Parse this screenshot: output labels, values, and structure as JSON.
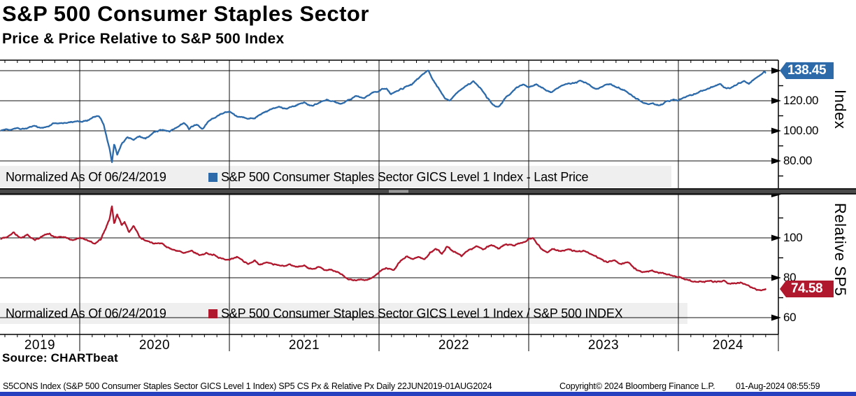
{
  "header": {
    "title": "S&P 500 Consumer Staples Sector",
    "subtitle": "Price & Price Relative to S&P 500 Index"
  },
  "source_line": "Source: CHARTbeat",
  "footer": {
    "left": "S5CONS Index (S&P 500 Consumer Staples Sector GICS Level 1 Index) SP5 CS Px & Relative Px  Daily 22JUN2019-01AUG2024",
    "copyright": "Copyright© 2024 Bloomberg Finance L.P.",
    "timestamp": "01-Aug-2024 08:55:59"
  },
  "x_axis": {
    "start": 2019.47,
    "end": 2024.585,
    "year_labels": [
      "2019",
      "2020",
      "2021",
      "2022",
      "2023",
      "2024"
    ],
    "year_gridlines": [
      2020,
      2021,
      2022,
      2023,
      2024
    ]
  },
  "chart_data": [
    {
      "type": "line",
      "panel": "price",
      "title": "S&P 500 Consumer Staples Sector GICS Level 1 Index",
      "legend_prefix": "Normalized As Of 06/24/2019",
      "legend_label": "S&P 500 Consumer Staples Sector GICS Level 1 Index - Last Price",
      "axis_label": "Index",
      "line_color": "#2d6aaa",
      "last_price": "138.45",
      "ylim": [
        68,
        147
      ],
      "yticks": [
        {
          "value": 120,
          "label": "120.00"
        },
        {
          "value": 100,
          "label": "100.00"
        },
        {
          "value": 80,
          "label": "80.00"
        }
      ],
      "minor_ticks": [
        130,
        110,
        90,
        70
      ],
      "gridline_values": [
        140,
        120,
        100,
        80
      ],
      "keyframes": [
        [
          2019.47,
          100
        ],
        [
          2019.52,
          100.5
        ],
        [
          2019.58,
          102
        ],
        [
          2019.63,
          101
        ],
        [
          2019.7,
          103
        ],
        [
          2019.75,
          102
        ],
        [
          2019.82,
          104.5
        ],
        [
          2019.9,
          105
        ],
        [
          2019.97,
          106.5
        ],
        [
          2020.05,
          107
        ],
        [
          2020.1,
          109.5
        ],
        [
          2020.13,
          110
        ],
        [
          2020.16,
          104
        ],
        [
          2020.18,
          96
        ],
        [
          2020.2,
          88
        ],
        [
          2020.215,
          79
        ],
        [
          2020.23,
          91
        ],
        [
          2020.25,
          84
        ],
        [
          2020.28,
          92
        ],
        [
          2020.32,
          96
        ],
        [
          2020.36,
          94
        ],
        [
          2020.4,
          97
        ],
        [
          2020.44,
          95
        ],
        [
          2020.5,
          99
        ],
        [
          2020.55,
          101
        ],
        [
          2020.6,
          99
        ],
        [
          2020.65,
          103
        ],
        [
          2020.7,
          105
        ],
        [
          2020.73,
          101
        ],
        [
          2020.78,
          104
        ],
        [
          2020.82,
          101
        ],
        [
          2020.87,
          107
        ],
        [
          2020.92,
          110
        ],
        [
          2020.97,
          112
        ],
        [
          2021.0,
          113
        ],
        [
          2021.05,
          110
        ],
        [
          2021.1,
          108.5
        ],
        [
          2021.17,
          109
        ],
        [
          2021.22,
          112
        ],
        [
          2021.28,
          114
        ],
        [
          2021.33,
          116
        ],
        [
          2021.38,
          114.5
        ],
        [
          2021.45,
          117
        ],
        [
          2021.5,
          118.5
        ],
        [
          2021.55,
          117
        ],
        [
          2021.6,
          119
        ],
        [
          2021.65,
          121
        ],
        [
          2021.7,
          119
        ],
        [
          2021.75,
          117.5
        ],
        [
          2021.8,
          121
        ],
        [
          2021.85,
          123
        ],
        [
          2021.9,
          122
        ],
        [
          2021.95,
          125
        ],
        [
          2022.0,
          127
        ],
        [
          2022.05,
          128
        ],
        [
          2022.08,
          125
        ],
        [
          2022.12,
          126
        ],
        [
          2022.17,
          129
        ],
        [
          2022.22,
          131
        ],
        [
          2022.26,
          134
        ],
        [
          2022.3,
          138.5
        ],
        [
          2022.33,
          140
        ],
        [
          2022.36,
          134
        ],
        [
          2022.4,
          128
        ],
        [
          2022.44,
          122
        ],
        [
          2022.47,
          119.5
        ],
        [
          2022.52,
          125
        ],
        [
          2022.56,
          128
        ],
        [
          2022.6,
          131
        ],
        [
          2022.63,
          133
        ],
        [
          2022.68,
          128
        ],
        [
          2022.72,
          122
        ],
        [
          2022.76,
          117
        ],
        [
          2022.8,
          115.5
        ],
        [
          2022.84,
          121
        ],
        [
          2022.88,
          125
        ],
        [
          2022.92,
          129
        ],
        [
          2022.96,
          131
        ],
        [
          2023.0,
          129
        ],
        [
          2023.05,
          131
        ],
        [
          2023.1,
          128
        ],
        [
          2023.15,
          126
        ],
        [
          2023.2,
          129
        ],
        [
          2023.25,
          131
        ],
        [
          2023.3,
          132
        ],
        [
          2023.35,
          133
        ],
        [
          2023.4,
          131
        ],
        [
          2023.45,
          128
        ],
        [
          2023.5,
          130
        ],
        [
          2023.55,
          131
        ],
        [
          2023.6,
          129
        ],
        [
          2023.65,
          126
        ],
        [
          2023.7,
          123
        ],
        [
          2023.75,
          120
        ],
        [
          2023.8,
          117.5
        ],
        [
          2023.83,
          118.5
        ],
        [
          2023.87,
          117
        ],
        [
          2023.92,
          119
        ],
        [
          2023.97,
          121
        ],
        [
          2024.0,
          120.5
        ],
        [
          2024.05,
          123
        ],
        [
          2024.1,
          124.5
        ],
        [
          2024.15,
          126
        ],
        [
          2024.2,
          128.5
        ],
        [
          2024.25,
          130
        ],
        [
          2024.28,
          131
        ],
        [
          2024.32,
          127.5
        ],
        [
          2024.36,
          129
        ],
        [
          2024.4,
          131.5
        ],
        [
          2024.44,
          133
        ],
        [
          2024.47,
          131
        ],
        [
          2024.5,
          133.5
        ],
        [
          2024.53,
          135.5
        ],
        [
          2024.56,
          138
        ],
        [
          2024.575,
          139.5
        ],
        [
          2024.585,
          138.45
        ]
      ]
    },
    {
      "type": "line",
      "panel": "relative",
      "title": "S&P 500 Consumer Staples Sector GICS Level 1 Index / S&P 500 INDEX",
      "legend_prefix": "Normalized As Of 06/24/2019",
      "legend_label": "S&P 500 Consumer Staples Sector GICS Level 1 Index / S&P 500 INDEX",
      "axis_label": "Relative SP5",
      "line_color": "#b0182e",
      "last_price": "74.58",
      "ylim": [
        50,
        122
      ],
      "yticks": [
        {
          "value": 100,
          "label": "100"
        },
        {
          "value": 80,
          "label": "80"
        },
        {
          "value": 60,
          "label": "60"
        }
      ],
      "minor_ticks": [
        110,
        90,
        70
      ],
      "gridline_values": [
        100,
        80,
        60
      ],
      "keyframes": [
        [
          2019.47,
          100
        ],
        [
          2019.52,
          101
        ],
        [
          2019.56,
          102.5
        ],
        [
          2019.6,
          100
        ],
        [
          2019.65,
          101.5
        ],
        [
          2019.7,
          99
        ],
        [
          2019.75,
          101
        ],
        [
          2019.8,
          102
        ],
        [
          2019.85,
          100
        ],
        [
          2019.9,
          100.5
        ],
        [
          2019.95,
          99
        ],
        [
          2020.0,
          100
        ],
        [
          2020.05,
          98.5
        ],
        [
          2020.1,
          97.5
        ],
        [
          2020.14,
          99
        ],
        [
          2020.17,
          104
        ],
        [
          2020.2,
          110
        ],
        [
          2020.215,
          116.5
        ],
        [
          2020.23,
          107
        ],
        [
          2020.25,
          112
        ],
        [
          2020.28,
          106
        ],
        [
          2020.3,
          108
        ],
        [
          2020.33,
          103
        ],
        [
          2020.36,
          105.5
        ],
        [
          2020.4,
          101
        ],
        [
          2020.45,
          98
        ],
        [
          2020.5,
          97
        ],
        [
          2020.55,
          97.5
        ],
        [
          2020.6,
          95
        ],
        [
          2020.65,
          94
        ],
        [
          2020.7,
          92.5
        ],
        [
          2020.75,
          94
        ],
        [
          2020.8,
          91.5
        ],
        [
          2020.85,
          92.5
        ],
        [
          2020.9,
          91
        ],
        [
          2020.95,
          89.5
        ],
        [
          2021.0,
          89
        ],
        [
          2021.05,
          91
        ],
        [
          2021.08,
          89
        ],
        [
          2021.12,
          87
        ],
        [
          2021.17,
          88.5
        ],
        [
          2021.2,
          86.5
        ],
        [
          2021.25,
          88
        ],
        [
          2021.3,
          87
        ],
        [
          2021.35,
          86
        ],
        [
          2021.4,
          86.5
        ],
        [
          2021.45,
          85.5
        ],
        [
          2021.5,
          86
        ],
        [
          2021.55,
          84.5
        ],
        [
          2021.6,
          85.5
        ],
        [
          2021.65,
          84
        ],
        [
          2021.7,
          83.5
        ],
        [
          2021.75,
          82
        ],
        [
          2021.78,
          79.5
        ],
        [
          2021.82,
          78.5
        ],
        [
          2021.86,
          79.5
        ],
        [
          2021.9,
          78.5
        ],
        [
          2021.95,
          80
        ],
        [
          2022.0,
          83
        ],
        [
          2022.05,
          85
        ],
        [
          2022.1,
          84
        ],
        [
          2022.14,
          88
        ],
        [
          2022.18,
          91
        ],
        [
          2022.22,
          89
        ],
        [
          2022.26,
          90.5
        ],
        [
          2022.3,
          89
        ],
        [
          2022.34,
          92
        ],
        [
          2022.38,
          94.5
        ],
        [
          2022.42,
          92
        ],
        [
          2022.45,
          95.5
        ],
        [
          2022.5,
          93
        ],
        [
          2022.55,
          91
        ],
        [
          2022.6,
          94
        ],
        [
          2022.65,
          96
        ],
        [
          2022.7,
          94.5
        ],
        [
          2022.75,
          96.5
        ],
        [
          2022.8,
          95
        ],
        [
          2022.85,
          97
        ],
        [
          2022.9,
          96
        ],
        [
          2022.95,
          97.5
        ],
        [
          2023.0,
          99.5
        ],
        [
          2023.03,
          100
        ],
        [
          2023.08,
          95
        ],
        [
          2023.12,
          93
        ],
        [
          2023.17,
          94.5
        ],
        [
          2023.22,
          93.5
        ],
        [
          2023.27,
          94
        ],
        [
          2023.32,
          93
        ],
        [
          2023.37,
          93.5
        ],
        [
          2023.42,
          92
        ],
        [
          2023.47,
          90
        ],
        [
          2023.52,
          88
        ],
        [
          2023.57,
          88.5
        ],
        [
          2023.62,
          87
        ],
        [
          2023.67,
          88
        ],
        [
          2023.72,
          84
        ],
        [
          2023.77,
          83
        ],
        [
          2023.82,
          83.5
        ],
        [
          2023.87,
          82.5
        ],
        [
          2023.92,
          82
        ],
        [
          2023.97,
          81
        ],
        [
          2024.0,
          80
        ],
        [
          2024.05,
          79
        ],
        [
          2024.1,
          78.5
        ],
        [
          2024.15,
          78
        ],
        [
          2024.2,
          78.5
        ],
        [
          2024.25,
          77.5
        ],
        [
          2024.3,
          78.5
        ],
        [
          2024.34,
          77
        ],
        [
          2024.38,
          76.5
        ],
        [
          2024.42,
          77.5
        ],
        [
          2024.46,
          76
        ],
        [
          2024.5,
          75
        ],
        [
          2024.53,
          74
        ],
        [
          2024.56,
          73.5
        ],
        [
          2024.57,
          73.8
        ],
        [
          2024.585,
          74.58
        ]
      ]
    }
  ]
}
